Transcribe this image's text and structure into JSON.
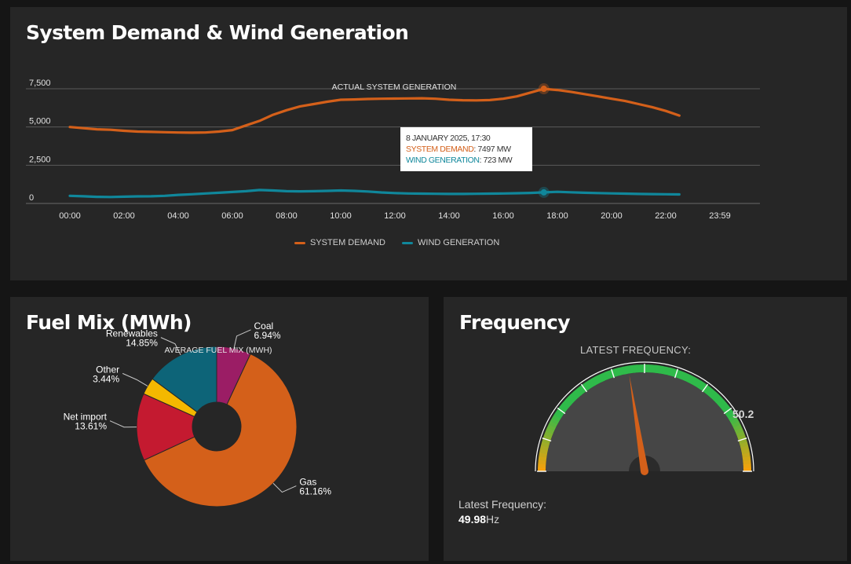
{
  "demand_panel": {
    "title": "System Demand & Wind Generation",
    "tooltip": {
      "timestamp": "8 JANUARY 2025, 17:30",
      "demand_label": "SYSTEM DEMAND",
      "demand_value": "7497 MW",
      "wind_label": "WIND GENERATION",
      "wind_value": "723 MW"
    },
    "legend": {
      "demand": "SYSTEM DEMAND",
      "wind": "WIND GENERATION"
    }
  },
  "fuel_panel": {
    "title": "Fuel Mix (MWh)"
  },
  "frequency_panel": {
    "title": "Frequency",
    "gauge_label": "LATEST FREQUENCY:",
    "gauge_max_label": "50.2",
    "latest_label": "Latest Frequency:",
    "latest_value": "49.98",
    "latest_unit": "Hz"
  },
  "colors": {
    "demand": "#d4601a",
    "wind": "#10879b",
    "panel": "#262626",
    "background": "#151515"
  },
  "chart_data": [
    {
      "type": "line",
      "title": "ACTUAL SYSTEM GENERATION",
      "x_tick_labels": [
        "00:00",
        "02:00",
        "04:00",
        "06:00",
        "08:00",
        "10:00",
        "12:00",
        "14:00",
        "16:00",
        "18:00",
        "20:00",
        "22:00",
        "23:59"
      ],
      "y_tick_labels": [
        "0",
        "2,500",
        "5,000",
        "7,500"
      ],
      "ylim": [
        0,
        7500
      ],
      "xlim_hours": [
        0,
        24
      ],
      "grid": true,
      "legend_position": "bottom-center",
      "series": [
        {
          "name": "SYSTEM DEMAND",
          "color": "#d4601a",
          "x_hours": [
            0,
            0.5,
            1,
            1.5,
            2,
            2.5,
            3,
            3.5,
            4,
            4.5,
            5,
            5.5,
            6,
            6.5,
            7,
            7.5,
            8,
            8.5,
            9,
            9.5,
            10,
            10.5,
            11,
            11.5,
            12,
            12.5,
            13,
            13.5,
            14,
            14.5,
            15,
            15.5,
            16,
            16.5,
            17,
            17.5,
            18,
            18.5,
            19,
            19.5,
            20,
            20.5,
            21,
            21.5,
            22,
            22.5
          ],
          "values": [
            5000,
            4920,
            4850,
            4820,
            4750,
            4700,
            4680,
            4660,
            4640,
            4630,
            4640,
            4700,
            4800,
            5100,
            5400,
            5800,
            6100,
            6350,
            6500,
            6650,
            6780,
            6800,
            6830,
            6850,
            6860,
            6870,
            6880,
            6850,
            6780,
            6750,
            6740,
            6760,
            6850,
            7000,
            7250,
            7497,
            7420,
            7300,
            7150,
            7000,
            6850,
            6700,
            6500,
            6300,
            6050,
            5750
          ]
        },
        {
          "name": "WIND GENERATION",
          "color": "#10879b",
          "x_hours": [
            0,
            0.5,
            1,
            1.5,
            2,
            2.5,
            3,
            3.5,
            4,
            4.5,
            5,
            5.5,
            6,
            6.5,
            7,
            7.5,
            8,
            8.5,
            9,
            9.5,
            10,
            10.5,
            11,
            11.5,
            12,
            12.5,
            13,
            13.5,
            14,
            14.5,
            15,
            15.5,
            16,
            16.5,
            17,
            17.5,
            18,
            18.5,
            19,
            19.5,
            20,
            20.5,
            21,
            21.5,
            22,
            22.5
          ],
          "values": [
            500,
            470,
            430,
            420,
            440,
            460,
            470,
            500,
            560,
            600,
            650,
            700,
            750,
            800,
            880,
            850,
            800,
            790,
            800,
            820,
            850,
            820,
            780,
            720,
            680,
            650,
            640,
            630,
            620,
            620,
            630,
            640,
            650,
            670,
            690,
            723,
            760,
            730,
            700,
            680,
            660,
            640,
            620,
            610,
            600,
            590
          ]
        }
      ],
      "hover_point": {
        "time": "17:30",
        "demand_mw": 7497,
        "wind_mw": 723
      }
    },
    {
      "type": "pie",
      "title": "AVERAGE FUEL MIX (MWH)",
      "style": "donut",
      "slices": [
        {
          "label": "Coal",
          "percent_label": "6.94%",
          "value": 6.94,
          "color": "#9b1d65"
        },
        {
          "label": "Gas",
          "percent_label": "61.16%",
          "value": 61.16,
          "color": "#d4601a"
        },
        {
          "label": "Net import",
          "percent_label": "13.61%",
          "value": 13.61,
          "color": "#c41a30"
        },
        {
          "label": "Other",
          "percent_label": "3.44%",
          "value": 3.44,
          "color": "#f4b800"
        },
        {
          "label": "Renewables",
          "percent_label": "14.85%",
          "value": 14.85,
          "color": "#0d6478"
        }
      ]
    },
    {
      "type": "gauge",
      "range": [
        49.8,
        50.2
      ],
      "value": 49.98,
      "max_label": "50.2",
      "band_colors": [
        "#f6a10c",
        "#2fba4a"
      ]
    }
  ]
}
